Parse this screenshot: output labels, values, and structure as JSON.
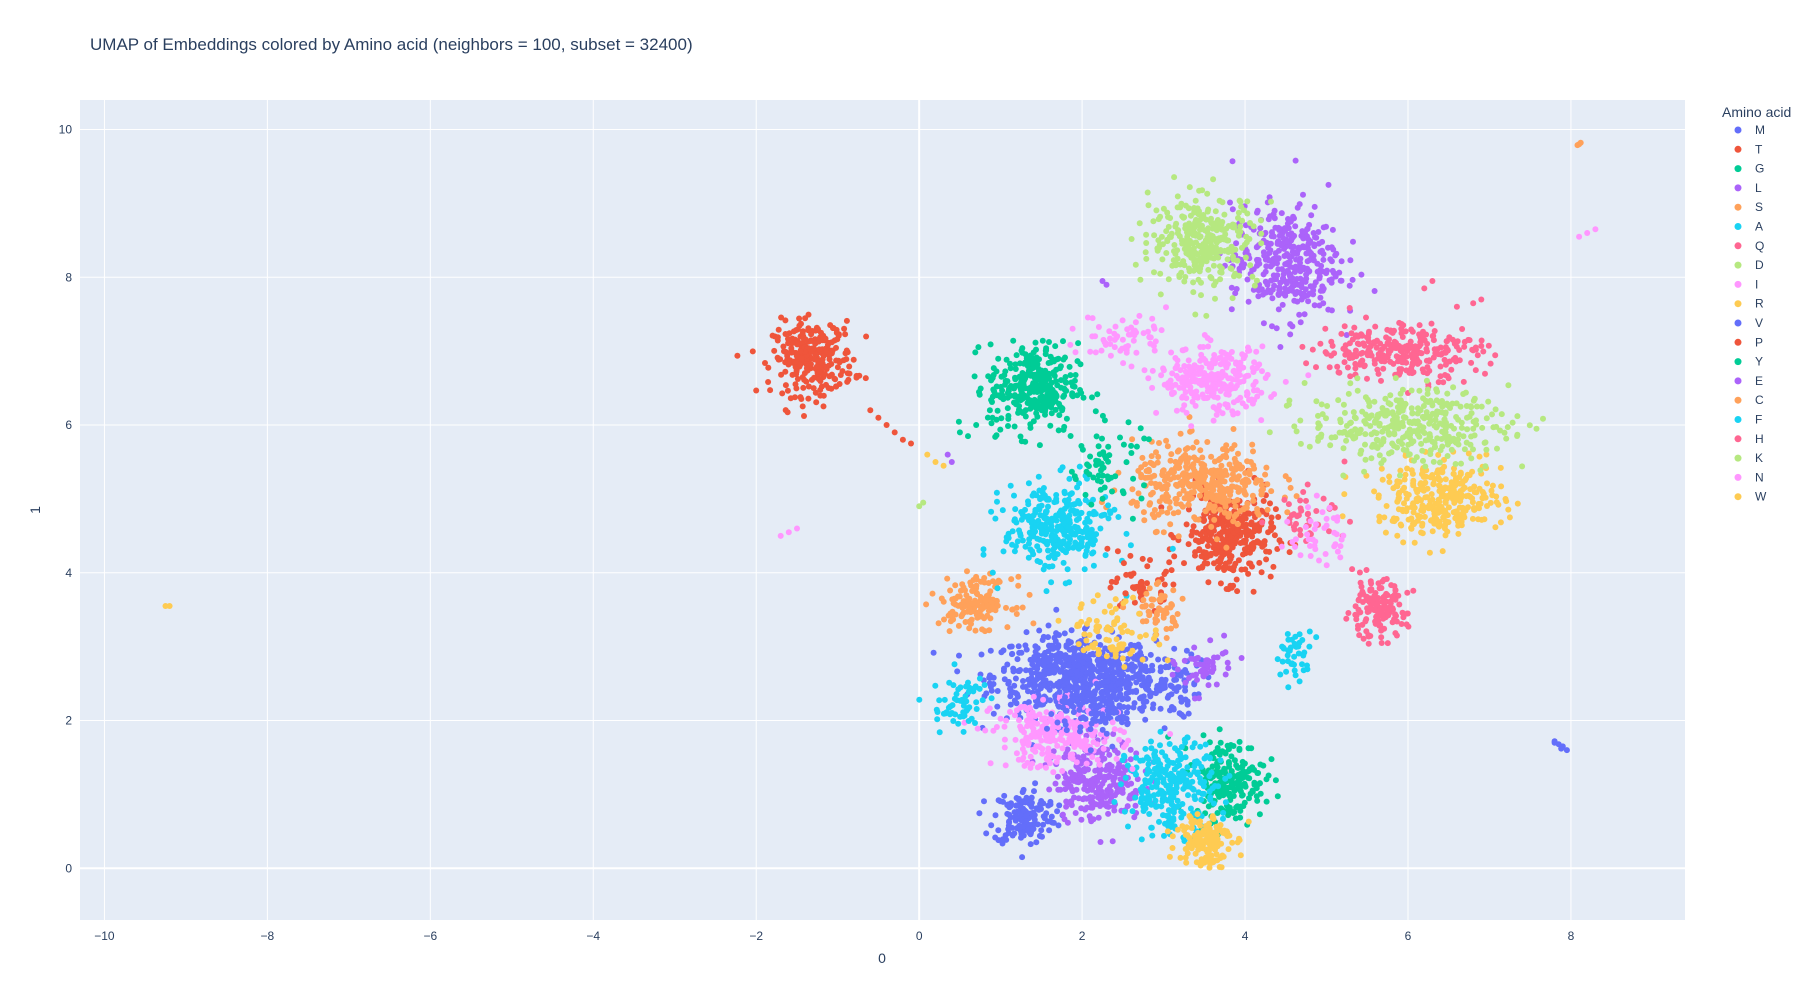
{
  "chart_data": {
    "type": "scatter",
    "title": "UMAP of Embeddings colored by Amino acid (neighbors = 100, subset = 32400)",
    "xlabel": "0",
    "ylabel": "1",
    "xlim": [
      -10.3,
      9.4
    ],
    "ylim": [
      -0.7,
      10.4
    ],
    "x_ticks": [
      -10,
      -8,
      -6,
      -4,
      -2,
      0,
      2,
      4,
      6,
      8
    ],
    "y_ticks": [
      0,
      2,
      4,
      6,
      8,
      10
    ],
    "grid": true,
    "legend_title": "Amino acid",
    "legend_position": "right",
    "background_color": "#E5ECF6",
    "series": [
      {
        "name": "M",
        "color": "#636EFA",
        "clusters": [
          {
            "cx": 1.9,
            "cy": 2.6,
            "rx": 0.9,
            "ry": 0.5,
            "n": 600
          },
          {
            "cx": 1.3,
            "cy": 0.7,
            "rx": 0.35,
            "ry": 0.35,
            "n": 160
          },
          {
            "cx": 2.9,
            "cy": 2.5,
            "rx": 0.5,
            "ry": 0.4,
            "n": 120
          }
        ],
        "points": [
          [
            7.8,
            1.7
          ],
          [
            7.85,
            1.68
          ],
          [
            7.9,
            1.65
          ],
          [
            7.95,
            1.6
          ],
          [
            7.8,
            1.72
          ],
          [
            7.88,
            1.62
          ]
        ]
      },
      {
        "name": "T",
        "color": "#EF553B",
        "clusters": [
          {
            "cx": -1.3,
            "cy": 6.9,
            "rx": 0.45,
            "ry": 0.45,
            "n": 280
          },
          {
            "cx": 3.8,
            "cy": 4.5,
            "rx": 0.5,
            "ry": 0.55,
            "n": 320
          }
        ],
        "points": [
          [
            -0.6,
            6.2
          ],
          [
            -0.4,
            6.0
          ],
          [
            -0.2,
            5.8
          ],
          [
            -0.5,
            6.1
          ],
          [
            -0.3,
            5.9
          ],
          [
            -0.1,
            5.75
          ]
        ]
      },
      {
        "name": "G",
        "color": "#00CC96",
        "clusters": [
          {
            "cx": 1.4,
            "cy": 6.5,
            "rx": 0.5,
            "ry": 0.55,
            "n": 320
          },
          {
            "cx": 3.8,
            "cy": 1.2,
            "rx": 0.4,
            "ry": 0.5,
            "n": 200
          }
        ],
        "points": [
          [
            0.5,
            5.9
          ],
          [
            0.7,
            6.0
          ],
          [
            0.9,
            6.1
          ],
          [
            0.6,
            5.85
          ]
        ]
      },
      {
        "name": "L",
        "color": "#AB63FA",
        "clusters": [
          {
            "cx": 4.5,
            "cy": 8.2,
            "rx": 0.6,
            "ry": 0.7,
            "n": 360
          },
          {
            "cx": 2.2,
            "cy": 1.2,
            "rx": 0.5,
            "ry": 0.5,
            "n": 260
          }
        ],
        "points": [
          [
            2.25,
            7.95
          ],
          [
            2.3,
            7.9
          ]
        ]
      },
      {
        "name": "S",
        "color": "#FFA15A",
        "clusters": [
          {
            "cx": 3.5,
            "cy": 5.2,
            "rx": 0.8,
            "ry": 0.5,
            "n": 380
          },
          {
            "cx": 0.7,
            "cy": 3.6,
            "rx": 0.4,
            "ry": 0.3,
            "n": 150
          }
        ],
        "points": [
          [
            8.1,
            9.8
          ],
          [
            8.12,
            9.82
          ],
          [
            8.08,
            9.79
          ]
        ]
      },
      {
        "name": "A",
        "color": "#19D3F3",
        "clusters": [
          {
            "cx": 1.7,
            "cy": 4.6,
            "rx": 0.6,
            "ry": 0.55,
            "n": 320
          },
          {
            "cx": 3.1,
            "cy": 1.1,
            "rx": 0.5,
            "ry": 0.55,
            "n": 260
          },
          {
            "cx": 4.6,
            "cy": 2.9,
            "rx": 0.2,
            "ry": 0.3,
            "n": 40
          }
        ],
        "points": []
      },
      {
        "name": "Q",
        "color": "#FF6692",
        "clusters": [
          {
            "cx": 5.9,
            "cy": 7.0,
            "rx": 0.9,
            "ry": 0.35,
            "n": 280
          },
          {
            "cx": 5.6,
            "cy": 3.5,
            "rx": 0.35,
            "ry": 0.35,
            "n": 140
          }
        ],
        "points": [
          [
            6.6,
            7.6
          ],
          [
            6.8,
            7.65
          ],
          [
            6.9,
            7.7
          ],
          [
            6.2,
            7.85
          ],
          [
            6.3,
            7.95
          ]
        ]
      },
      {
        "name": "D",
        "color": "#B6E880",
        "clusters": [
          {
            "cx": 3.5,
            "cy": 8.5,
            "rx": 0.6,
            "ry": 0.55,
            "n": 320
          }
        ],
        "points": []
      },
      {
        "name": "I",
        "color": "#FF97FF",
        "clusters": [
          {
            "cx": 3.6,
            "cy": 6.6,
            "rx": 0.6,
            "ry": 0.4,
            "n": 280
          },
          {
            "cx": 1.7,
            "cy": 1.8,
            "rx": 0.7,
            "ry": 0.4,
            "n": 260
          }
        ],
        "points": [
          [
            -1.7,
            4.5
          ],
          [
            -1.6,
            4.55
          ],
          [
            -1.5,
            4.6
          ],
          [
            8.2,
            8.6
          ],
          [
            8.3,
            8.65
          ],
          [
            8.1,
            8.55
          ]
        ]
      },
      {
        "name": "R",
        "color": "#FECB52",
        "clusters": [
          {
            "cx": 6.4,
            "cy": 5.0,
            "rx": 0.7,
            "ry": 0.45,
            "n": 320
          },
          {
            "cx": 3.5,
            "cy": 0.4,
            "rx": 0.3,
            "ry": 0.35,
            "n": 140
          }
        ],
        "points": [
          [
            -9.2,
            3.55
          ],
          [
            -9.25,
            3.55
          ],
          [
            0.1,
            5.6
          ],
          [
            0.2,
            5.5
          ],
          [
            0.3,
            5.45
          ]
        ]
      },
      {
        "name": "V",
        "color": "#636EFA",
        "clusters": [
          {
            "cx": 2.2,
            "cy": 2.2,
            "rx": 0.5,
            "ry": 0.4,
            "n": 120
          }
        ],
        "points": []
      },
      {
        "name": "P",
        "color": "#EF553B",
        "clusters": [
          {
            "cx": 2.7,
            "cy": 3.8,
            "rx": 0.3,
            "ry": 0.3,
            "n": 50
          }
        ],
        "points": []
      },
      {
        "name": "Y",
        "color": "#00CC96",
        "clusters": [
          {
            "cx": 2.3,
            "cy": 5.5,
            "rx": 0.4,
            "ry": 0.5,
            "n": 60
          }
        ],
        "points": []
      },
      {
        "name": "E",
        "color": "#AB63FA",
        "clusters": [
          {
            "cx": 3.5,
            "cy": 2.7,
            "rx": 0.3,
            "ry": 0.3,
            "n": 50
          }
        ],
        "points": [
          [
            0.4,
            5.5
          ],
          [
            0.35,
            5.6
          ]
        ]
      },
      {
        "name": "C",
        "color": "#FFA15A",
        "clusters": [
          {
            "cx": 2.9,
            "cy": 3.5,
            "rx": 0.3,
            "ry": 0.3,
            "n": 50
          }
        ],
        "points": []
      },
      {
        "name": "F",
        "color": "#19D3F3",
        "clusters": [
          {
            "cx": 0.5,
            "cy": 2.2,
            "rx": 0.3,
            "ry": 0.4,
            "n": 60
          }
        ],
        "points": []
      },
      {
        "name": "H",
        "color": "#FF6692",
        "clusters": [
          {
            "cx": 4.8,
            "cy": 4.8,
            "rx": 0.4,
            "ry": 0.3,
            "n": 40
          }
        ],
        "points": []
      },
      {
        "name": "K",
        "color": "#B6E880",
        "clusters": [
          {
            "cx": 6.0,
            "cy": 6.0,
            "rx": 1.1,
            "ry": 0.45,
            "n": 360
          }
        ],
        "points": [
          [
            0.0,
            4.9
          ],
          [
            0.05,
            4.95
          ]
        ]
      },
      {
        "name": "N",
        "color": "#FF97FF",
        "clusters": [
          {
            "cx": 2.5,
            "cy": 7.2,
            "rx": 0.5,
            "ry": 0.3,
            "n": 60
          },
          {
            "cx": 4.9,
            "cy": 4.5,
            "rx": 0.3,
            "ry": 0.4,
            "n": 40
          }
        ],
        "points": []
      },
      {
        "name": "W",
        "color": "#FECB52",
        "clusters": [
          {
            "cx": 2.4,
            "cy": 3.2,
            "rx": 0.5,
            "ry": 0.4,
            "n": 80
          }
        ],
        "points": []
      }
    ]
  }
}
